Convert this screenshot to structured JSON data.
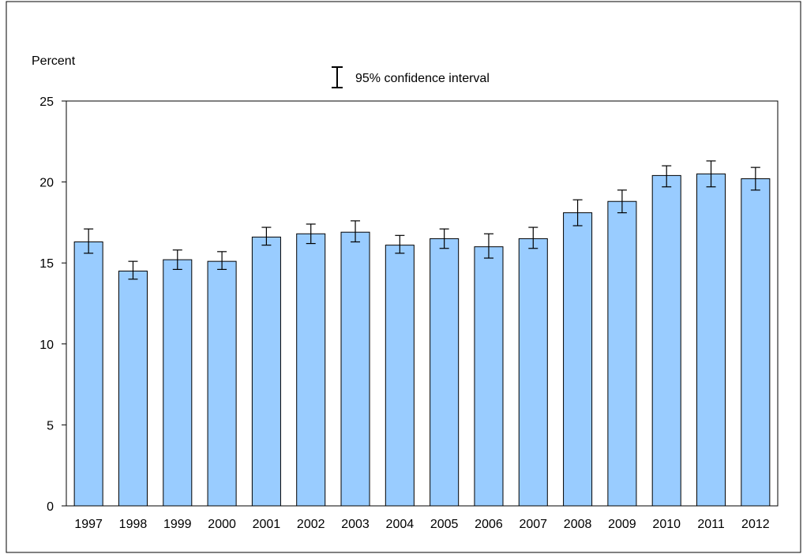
{
  "chart_data": {
    "type": "bar",
    "title": "",
    "xlabel": "",
    "ylabel": "Percent",
    "ylim": [
      0,
      25
    ],
    "yticks": [
      0,
      5,
      10,
      15,
      20,
      25
    ],
    "grid": false,
    "legend": {
      "label": "95% confidence  interval",
      "placement": "top-center"
    },
    "colors": {
      "bar": "#99ccff",
      "bar_stroke": "#000000",
      "error_bar": "#000000"
    },
    "categories": [
      "1997",
      "1998",
      "1999",
      "2000",
      "2001",
      "2002",
      "2003",
      "2004",
      "2005",
      "2006",
      "2007",
      "2008",
      "2009",
      "2010",
      "2011",
      "2012"
    ],
    "values": [
      16.3,
      14.5,
      15.2,
      15.1,
      16.6,
      16.8,
      16.9,
      16.1,
      16.5,
      16.0,
      16.5,
      18.1,
      18.8,
      20.4,
      20.5,
      20.2
    ],
    "ci_lower": [
      15.6,
      14.0,
      14.6,
      14.6,
      16.1,
      16.2,
      16.3,
      15.6,
      15.9,
      15.3,
      15.9,
      17.3,
      18.1,
      19.7,
      19.7,
      19.5
    ],
    "ci_upper": [
      17.1,
      15.1,
      15.8,
      15.7,
      17.2,
      17.4,
      17.6,
      16.7,
      17.1,
      16.8,
      17.2,
      18.9,
      19.5,
      21.0,
      21.3,
      20.9
    ]
  }
}
